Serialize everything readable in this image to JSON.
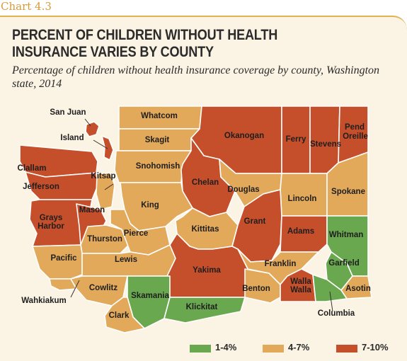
{
  "chart_label": "Chart 4.3",
  "title": "PERCENT OF CHILDREN WITHOUT HEALTH INSURANCE VARIES BY COUNTY",
  "subtitle": "Percentage of children without health insurance coverage by county, Washington state, 2014",
  "colors": {
    "low": "#6aa84f",
    "mid": "#e3a95a",
    "high": "#c64f2b",
    "panel": "#fbf3e3",
    "border": "#ffffff"
  },
  "legend": [
    {
      "label": "1-4%",
      "category": "low",
      "color": "#6aa84f"
    },
    {
      "label": "4-7%",
      "category": "mid",
      "color": "#e3a95a"
    },
    {
      "label": "7-10%",
      "category": "high",
      "color": "#c64f2b"
    }
  ],
  "counties": [
    {
      "name": "San Juan",
      "category": "high"
    },
    {
      "name": "Whatcom",
      "category": "mid"
    },
    {
      "name": "Okanogan",
      "category": "high"
    },
    {
      "name": "Ferry",
      "category": "high"
    },
    {
      "name": "Stevens",
      "category": "high"
    },
    {
      "name": "Pend Oreille",
      "category": "high"
    },
    {
      "name": "Island",
      "category": "high"
    },
    {
      "name": "Skagit",
      "category": "mid"
    },
    {
      "name": "Snohomish",
      "category": "mid"
    },
    {
      "name": "Clallam",
      "category": "high"
    },
    {
      "name": "Jefferson",
      "category": "high"
    },
    {
      "name": "Kitsap",
      "category": "mid"
    },
    {
      "name": "Chelan",
      "category": "high"
    },
    {
      "name": "Douglas",
      "category": "mid"
    },
    {
      "name": "Lincoln",
      "category": "mid"
    },
    {
      "name": "Spokane",
      "category": "mid"
    },
    {
      "name": "King",
      "category": "mid"
    },
    {
      "name": "Grays Harbor",
      "category": "high"
    },
    {
      "name": "Mason",
      "category": "high"
    },
    {
      "name": "Kittitas",
      "category": "mid"
    },
    {
      "name": "Grant",
      "category": "high"
    },
    {
      "name": "Adams",
      "category": "high"
    },
    {
      "name": "Whitman",
      "category": "low"
    },
    {
      "name": "Thurston",
      "category": "mid"
    },
    {
      "name": "Pierce",
      "category": "mid"
    },
    {
      "name": "Pacific",
      "category": "mid"
    },
    {
      "name": "Lewis",
      "category": "mid"
    },
    {
      "name": "Franklin",
      "category": "mid"
    },
    {
      "name": "Garfield",
      "category": "low"
    },
    {
      "name": "Yakima",
      "category": "high"
    },
    {
      "name": "Wahkiakum",
      "category": "mid"
    },
    {
      "name": "Cowlitz",
      "category": "mid"
    },
    {
      "name": "Benton",
      "category": "mid"
    },
    {
      "name": "Walla Walla",
      "category": "high"
    },
    {
      "name": "Asotin",
      "category": "mid"
    },
    {
      "name": "Skamania",
      "category": "low"
    },
    {
      "name": "Klickitat",
      "category": "low"
    },
    {
      "name": "Clark",
      "category": "mid"
    },
    {
      "name": "Columbia",
      "category": "low"
    }
  ]
}
